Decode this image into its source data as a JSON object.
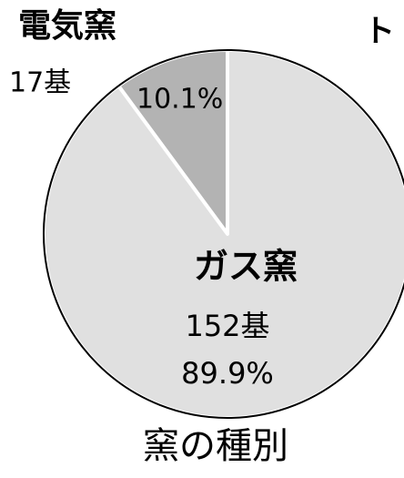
{
  "chart_data": {
    "type": "pie",
    "title": "窯の種別",
    "annotation": "ト",
    "categories": [
      "電気窯",
      "ガス窯"
    ],
    "values": [
      10.1,
      89.9
    ],
    "value_labels": [
      "10.1%",
      "89.9%"
    ],
    "count_labels": [
      "17基",
      "152基"
    ],
    "colors": [
      "#b3b3b3",
      "#e0e0e0"
    ]
  }
}
